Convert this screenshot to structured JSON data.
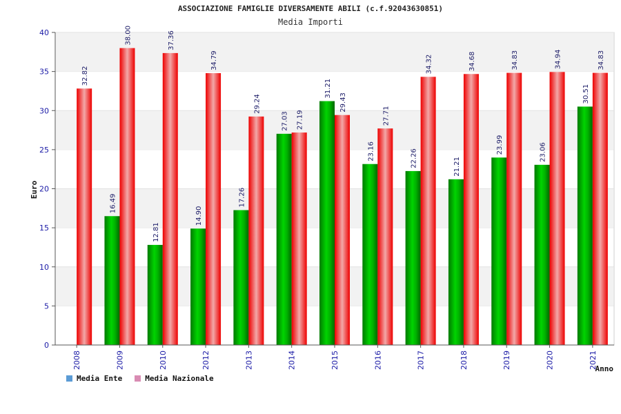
{
  "chart_data": {
    "type": "bar",
    "title": "ASSOCIAZIONE FAMIGLIE DIVERSAMENTE ABILI (c.f.92043630851)",
    "subtitle": "Media Importi",
    "xlabel": "Anno",
    "ylabel": "Euro",
    "ylim": [
      0,
      40
    ],
    "yticks": [
      "0",
      "5",
      "10",
      "15",
      "20",
      "25",
      "30",
      "35",
      "40"
    ],
    "categories": [
      "2008",
      "2009",
      "2010",
      "2012",
      "2013",
      "2014",
      "2015",
      "2016",
      "2017",
      "2018",
      "2019",
      "2020",
      "2021"
    ],
    "series": [
      {
        "name": "Media Ente",
        "legend_color": "#5b9bd5",
        "bar_color": "#00c000",
        "values": [
          null,
          16.49,
          12.81,
          14.9,
          17.26,
          27.03,
          31.21,
          23.16,
          22.26,
          21.21,
          23.99,
          23.06,
          30.51
        ],
        "labels": [
          "",
          "16.49",
          "12.81",
          "14.90",
          "17.26",
          "27.03",
          "31.21",
          "23.16",
          "22.26",
          "21.21",
          "23.99",
          "23.06",
          "30.51"
        ]
      },
      {
        "name": "Media Nazionale",
        "legend_color": "#d98cb3",
        "bar_color": "#ee1111",
        "values": [
          32.82,
          38.0,
          37.36,
          34.79,
          29.24,
          27.19,
          29.43,
          27.71,
          34.32,
          34.68,
          34.83,
          34.94,
          34.83
        ],
        "labels": [
          "32.82",
          "38.00",
          "37.36",
          "34.79",
          "29.24",
          "27.19",
          "29.43",
          "27.71",
          "34.32",
          "34.68",
          "34.83",
          "34.94",
          "34.83"
        ]
      }
    ],
    "grid": true,
    "legend_position": "bottom-left"
  }
}
